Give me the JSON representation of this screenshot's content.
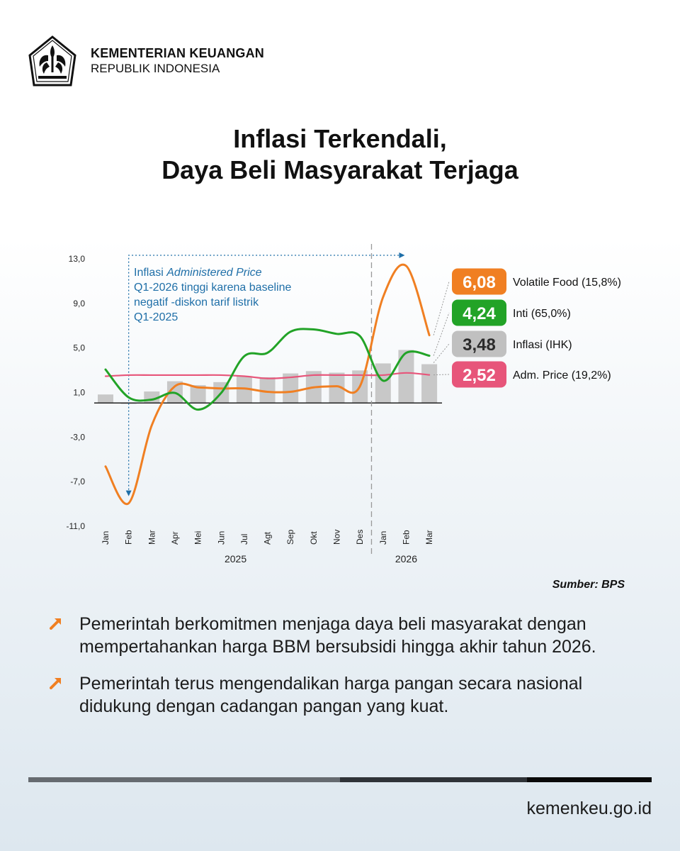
{
  "header": {
    "org_line1": "KEMENTERIAN KEUANGAN",
    "org_line2": "REPUBLIK INDONESIA"
  },
  "title": {
    "line1": "Inflasi Terkendali,",
    "line2": "Daya Beli Masyarakat Terjaga"
  },
  "annotation": {
    "line1_prefix": "Inflasi ",
    "line1_italic": "Administered Price",
    "line2": "Q1-2026 tinggi karena baseline",
    "line3": "negatif -diskon tarif listrik",
    "line4": "Q1-2025"
  },
  "legend": [
    {
      "value": "6,08",
      "label": "Volatile Food (15,8%)",
      "color": "#f07f22"
    },
    {
      "value": "4,24",
      "label": "Inti (65,0%)",
      "color": "#22a327"
    },
    {
      "value": "3,48",
      "label": "Inflasi (IHK)",
      "color": "#c0c0c0",
      "text_color": "#2b2b2b"
    },
    {
      "value": "2,52",
      "label": "Adm. Price (19,2%)",
      "color": "#e7557a"
    }
  ],
  "chart_data": {
    "type": "bar+line",
    "categories": [
      "Jan",
      "Feb",
      "Mar",
      "Apr",
      "Mei",
      "Jun",
      "Jul",
      "Agt",
      "Sep",
      "Okt",
      "Nov",
      "Des",
      "Jan",
      "Feb",
      "Mar"
    ],
    "year_labels": [
      "2025",
      "2026"
    ],
    "yticks": [
      "13,0",
      "9,0",
      "5,0",
      "1,0",
      "-3,0",
      "-7,0",
      "-11,0"
    ],
    "ylim": [
      -11,
      13
    ],
    "colors": {
      "bars": "#c8c8c8",
      "volatile_food": "#f07f22",
      "inti": "#22a327",
      "adm_price": "#e7557a",
      "annotation": "#1f6fa8"
    },
    "bar_values": [
      0.76,
      -0.09,
      1.03,
      1.95,
      1.6,
      1.87,
      2.37,
      2.31,
      2.65,
      2.86,
      2.72,
      2.92,
      3.55,
      4.76,
      3.48
    ],
    "series": [
      {
        "name": "Volatile Food (15,8%)",
        "values": [
          -5.7,
          -9.0,
          -2.0,
          1.5,
          1.4,
          1.3,
          1.3,
          1.0,
          1.0,
          1.4,
          1.5,
          1.5,
          9.5,
          12.3,
          6.08
        ]
      },
      {
        "name": "Inti (65,0%)",
        "values": [
          3.0,
          0.5,
          0.3,
          0.9,
          -0.6,
          0.9,
          4.2,
          4.5,
          6.4,
          6.6,
          6.2,
          6.0,
          2.0,
          4.5,
          4.24
        ]
      },
      {
        "name": "Adm. Price (19,2%)",
        "values": [
          2.4,
          2.5,
          2.5,
          2.5,
          2.5,
          2.5,
          2.4,
          2.2,
          2.3,
          2.5,
          2.5,
          2.5,
          2.5,
          2.7,
          2.52
        ]
      }
    ],
    "source": "Sumber: BPS"
  },
  "bullets": [
    "Pemerintah berkomitmen menjaga daya beli masyarakat dengan mempertahankan harga BBM bersubsidi hingga akhir tahun 2026.",
    "Pemerintah terus mengendalikan harga pangan secara nasional didukung dengan cadangan pangan yang kuat."
  ],
  "footer": {
    "site": "kemenkeu.go.id"
  }
}
